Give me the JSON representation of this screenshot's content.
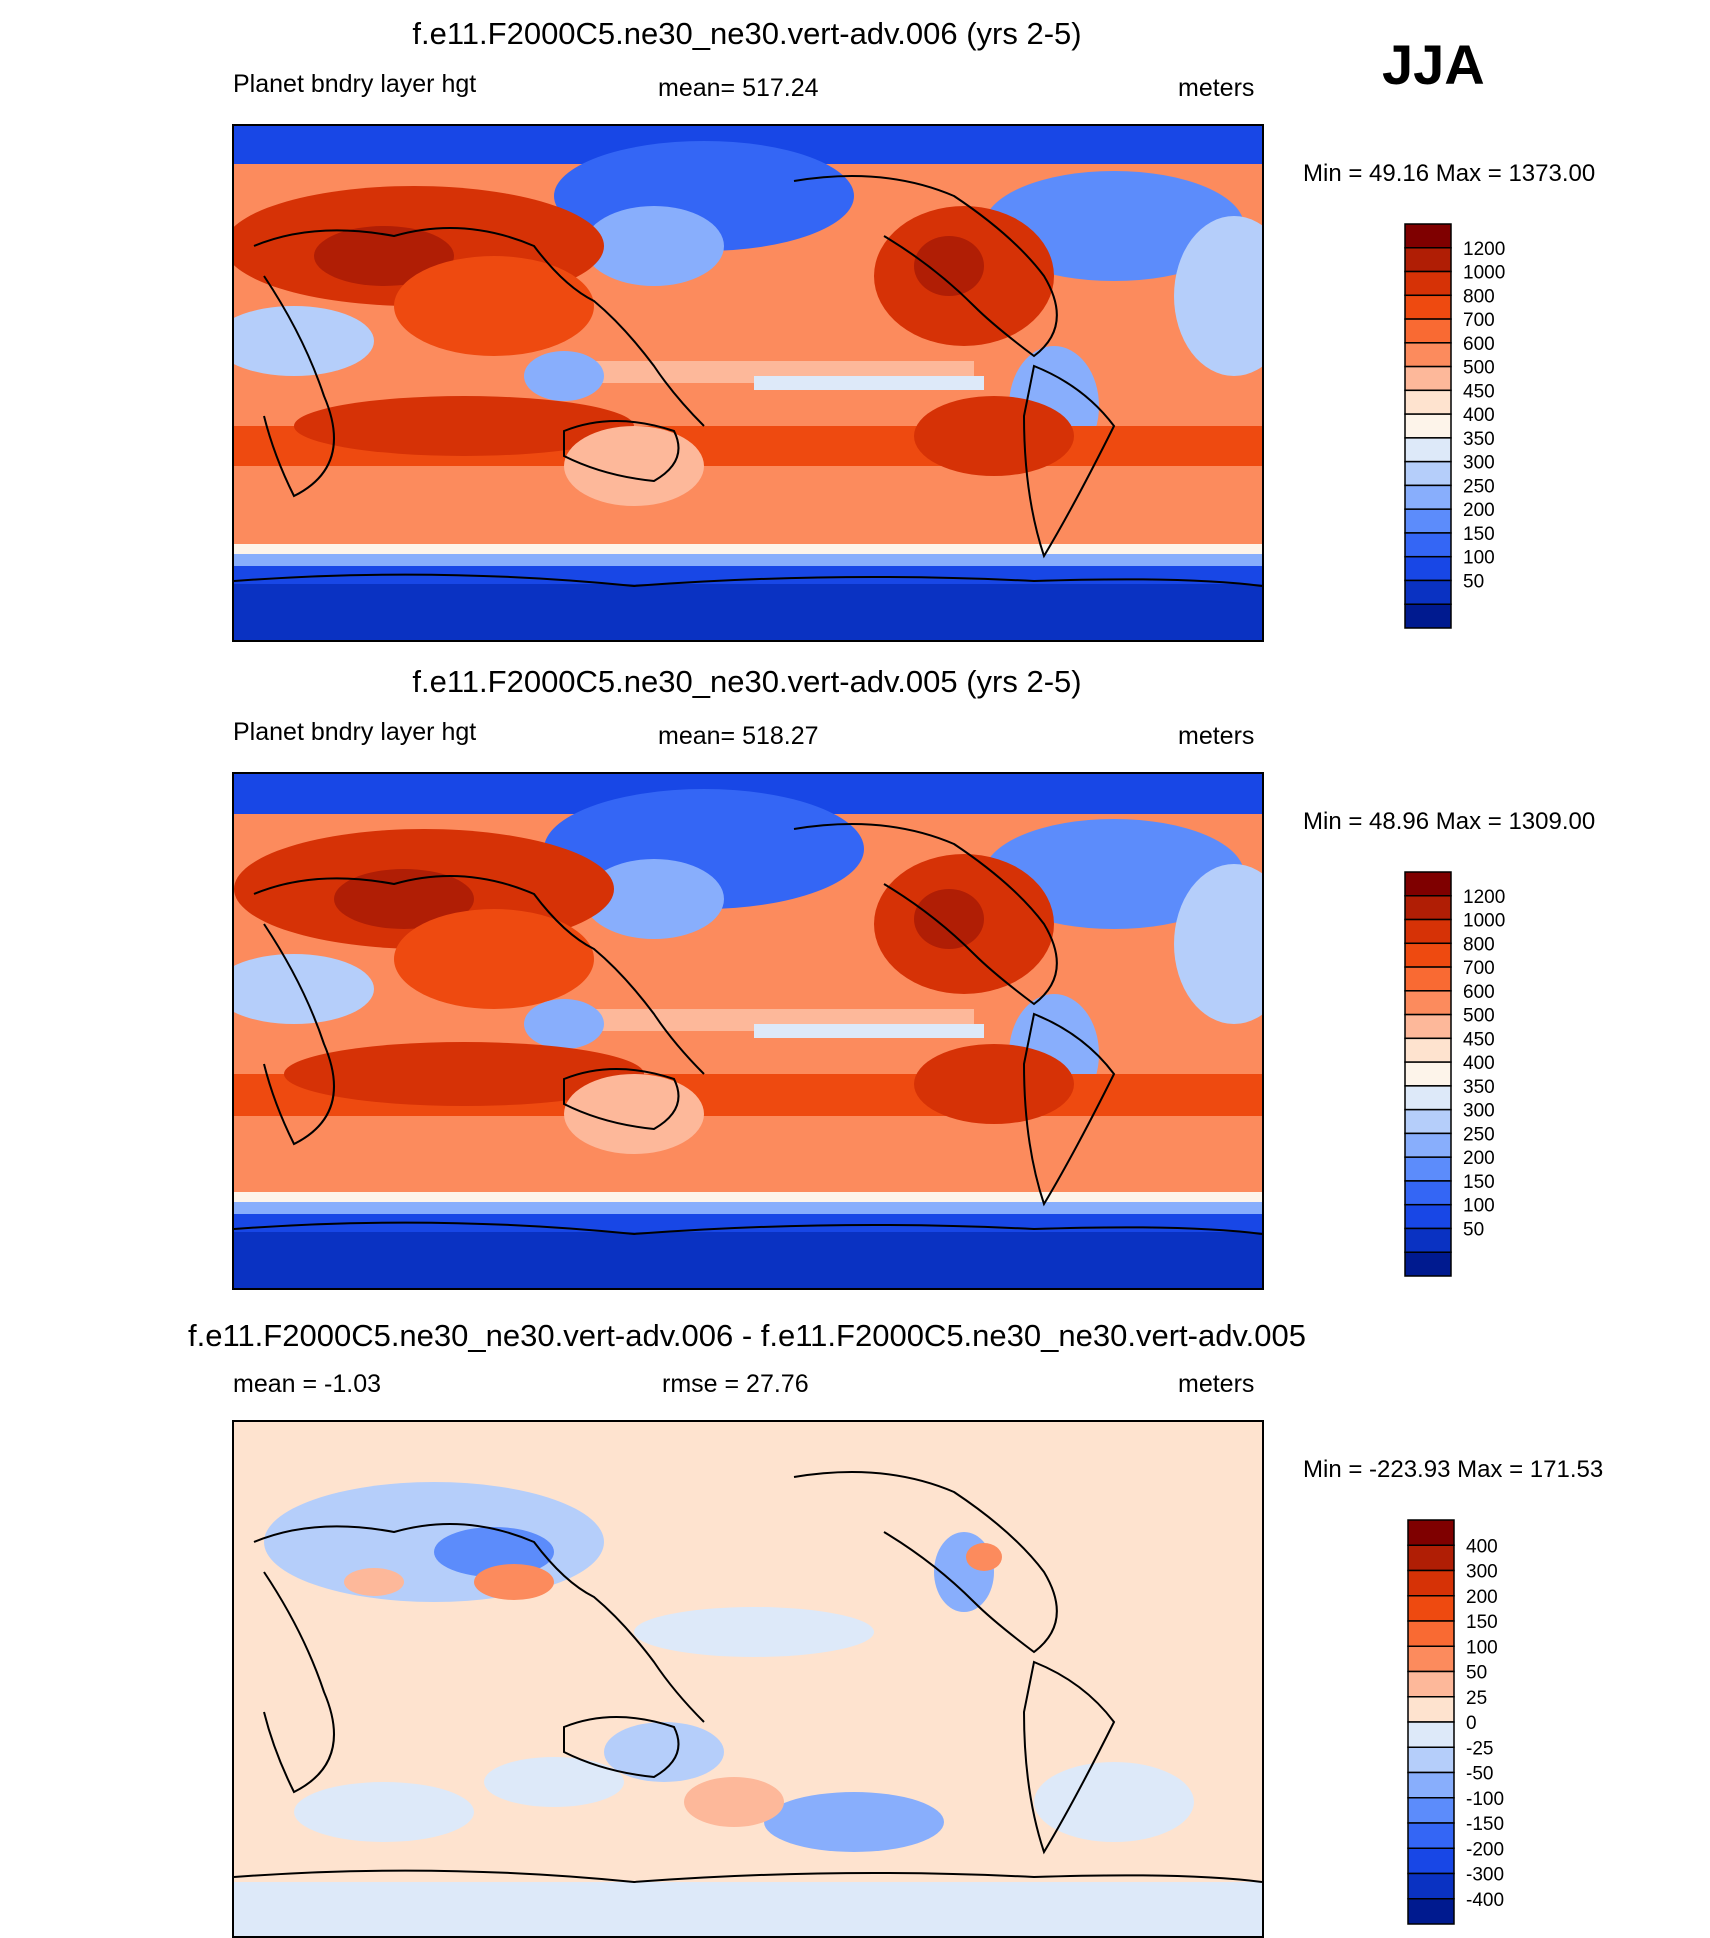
{
  "season": "JJA",
  "panels": [
    {
      "title": "f.e11.F2000C5.ne30_ne30.vert-adv.006 (yrs 2-5)",
      "left_label": "Planet bndry layer hgt",
      "center_label": "mean= 517.24",
      "right_label": "meters",
      "minmax": "Min =  49.16 Max = 1373.00",
      "scale": "abs"
    },
    {
      "title": "f.e11.F2000C5.ne30_ne30.vert-adv.005 (yrs 2-5)",
      "left_label": "Planet bndry layer hgt",
      "center_label": "mean= 518.27",
      "right_label": "meters",
      "minmax": "Min =  48.96 Max = 1309.00",
      "scale": "abs"
    },
    {
      "title": "f.e11.F2000C5.ne30_ne30.vert-adv.006 - f.e11.F2000C5.ne30_ne30.vert-adv.005",
      "left_label": "mean =  -1.03",
      "center_label": "rmse =  27.76",
      "right_label": "meters",
      "minmax": "Min = -223.93 Max = 171.53",
      "scale": "diff"
    }
  ],
  "colorbars": {
    "abs": {
      "labels": [
        "1200",
        "1000",
        "800",
        "700",
        "600",
        "500",
        "450",
        "400",
        "350",
        "300",
        "250",
        "200",
        "150",
        "100",
        "50"
      ],
      "colors": [
        "#7f0000",
        "#b01e05",
        "#d63206",
        "#ee4a10",
        "#f96a33",
        "#fc8b5d",
        "#fdb89a",
        "#fee3cf",
        "#fdf4ea",
        "#dde9f9",
        "#b5cefa",
        "#88aefc",
        "#5c8cfb",
        "#3466f5",
        "#1847e6",
        "#0a32c2",
        "#001a8f"
      ]
    },
    "diff": {
      "labels": [
        "400",
        "300",
        "200",
        "150",
        "100",
        "50",
        "25",
        "0",
        "-25",
        "-50",
        "-100",
        "-150",
        "-200",
        "-300",
        "-400"
      ],
      "colors": [
        "#7f0000",
        "#b01e05",
        "#d63206",
        "#ee4a10",
        "#f96a33",
        "#fc8b5d",
        "#fdb89a",
        "#fee3cf",
        "#dde9f9",
        "#b5cefa",
        "#88aefc",
        "#5c8cfb",
        "#3466f5",
        "#1847e6",
        "#0a32c2",
        "#001a8f"
      ]
    }
  }
}
